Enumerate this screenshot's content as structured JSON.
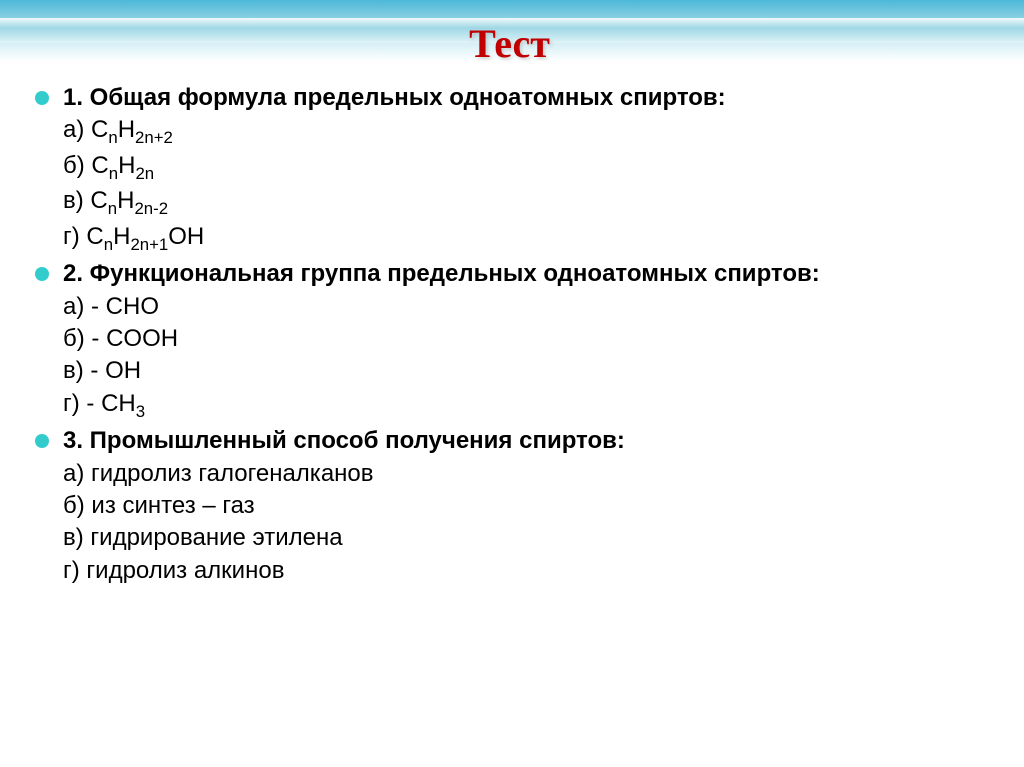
{
  "title": "Тест",
  "title_color": "#c00000",
  "bullet_color": "#33cccc",
  "text_color": "#000000",
  "questions": [
    {
      "text": "1. Общая формула предельных одноатомных спиртов:",
      "answers_html": [
        "а) С<sub>n</sub>H<sub>2n+2</sub>",
        "б) С<sub>n</sub>H<sub>2n</sub>",
        "в) С<sub>n</sub>H<sub>2n-2</sub>",
        "г) С<sub>n</sub>H<sub>2n+1</sub>OH"
      ]
    },
    {
      "text": "2. Функциональная группа предельных одноатомных спиртов:",
      "answers_html": [
        "а) - CHO",
        "б) - COOH",
        "в) - OH",
        "г) - CH<sub>3</sub>"
      ]
    },
    {
      "text": "3. Промышленный способ получения спиртов:",
      "answers_html": [
        "а) гидролиз галогеналканов",
        "б) из синтез – газ",
        "в) гидрирование этилена",
        "г) гидролиз алкинов"
      ]
    }
  ]
}
